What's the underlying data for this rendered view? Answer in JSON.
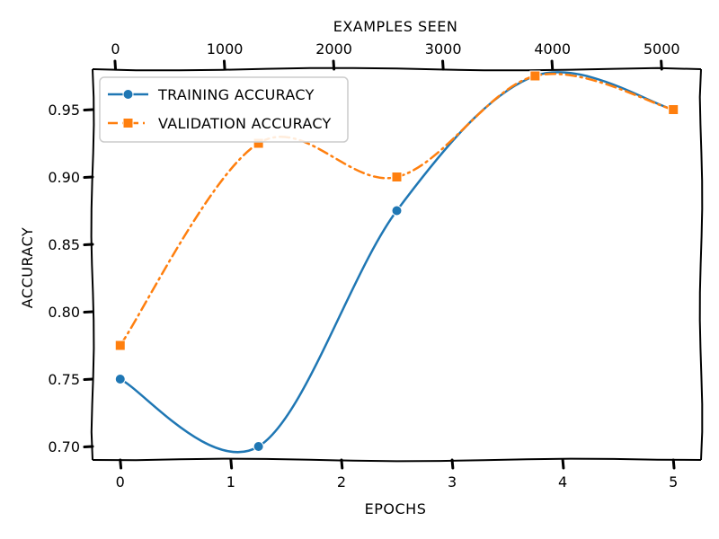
{
  "chart_data": {
    "type": "line",
    "xlabel": "EPOCHS",
    "ylabel": "ACCURACY",
    "top_xlabel": "EXAMPLES SEEN",
    "x": [
      0,
      1.25,
      2.5,
      3.75,
      5
    ],
    "xlim": [
      -0.25,
      5.25
    ],
    "ylim": [
      0.69,
      0.98
    ],
    "x_ticks": [
      0,
      1,
      2,
      3,
      4,
      5
    ],
    "x_tick_labels": [
      "0",
      "1",
      "2",
      "3",
      "4",
      "5"
    ],
    "y_ticks": [
      0.7,
      0.75,
      0.8,
      0.85,
      0.9,
      0.95
    ],
    "y_tick_labels": [
      "0.70",
      "0.75",
      "0.80",
      "0.85",
      "0.90",
      "0.95"
    ],
    "top_x_ticks": [
      0,
      1000,
      2000,
      3000,
      4000,
      5000
    ],
    "top_x_tick_labels": [
      "0",
      "1000",
      "2000",
      "3000",
      "4000",
      "5000"
    ],
    "top_xlim": [
      -210,
      5360
    ],
    "grid": false,
    "legend_position": "top-left",
    "series": [
      {
        "name": "TRAINING ACCURACY",
        "values": [
          0.75,
          0.7,
          0.875,
          0.975,
          0.95
        ],
        "color": "#1f77b4",
        "marker": "circle",
        "line_style": "solid"
      },
      {
        "name": "VALIDATION ACCURACY",
        "values": [
          0.775,
          0.925,
          0.9,
          0.975,
          0.95
        ],
        "color": "#ff7f0e",
        "marker": "square",
        "line_style": "dash-dot"
      }
    ]
  }
}
